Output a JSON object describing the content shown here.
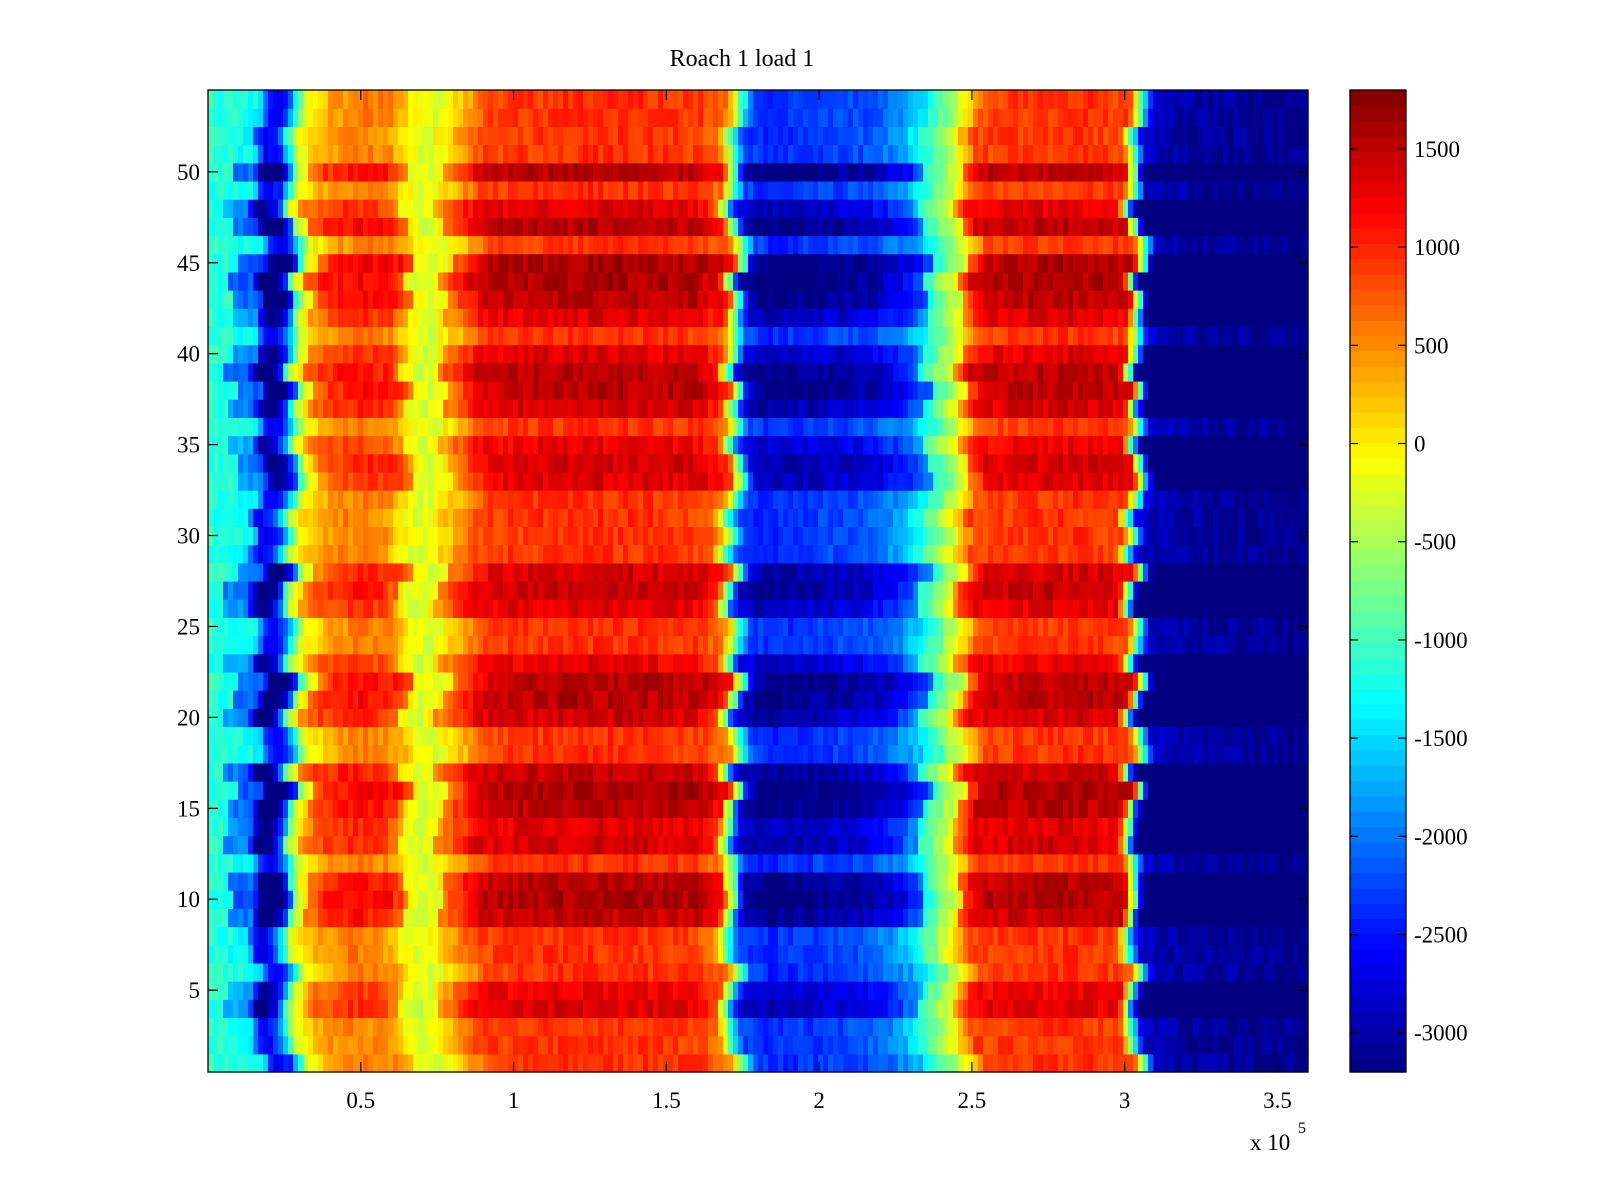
{
  "chart_data": {
    "type": "heatmap",
    "title": "Roach 1 load 1",
    "xlabel": "",
    "ylabel": "",
    "x_multiplier_label": {
      "base": "x 10",
      "exponent": "5"
    },
    "xlim": [
      0,
      360000
    ],
    "ylim": [
      0.5,
      54.5
    ],
    "x_ticks": [
      {
        "value": 50000,
        "label": "0.5"
      },
      {
        "value": 100000,
        "label": "1"
      },
      {
        "value": 150000,
        "label": "1.5"
      },
      {
        "value": 200000,
        "label": "2"
      },
      {
        "value": 250000,
        "label": "2.5"
      },
      {
        "value": 300000,
        "label": "3"
      },
      {
        "value": 350000,
        "label": "3.5"
      }
    ],
    "y_ticks": [
      {
        "value": 5,
        "label": "5"
      },
      {
        "value": 10,
        "label": "10"
      },
      {
        "value": 15,
        "label": "15"
      },
      {
        "value": 20,
        "label": "20"
      },
      {
        "value": 25,
        "label": "25"
      },
      {
        "value": 30,
        "label": "30"
      },
      {
        "value": 35,
        "label": "35"
      },
      {
        "value": 40,
        "label": "40"
      },
      {
        "value": 45,
        "label": "45"
      },
      {
        "value": 50,
        "label": "50"
      }
    ],
    "colorbar": {
      "colormap": "jet",
      "clim": [
        -3200,
        1800
      ],
      "ticks": [
        {
          "value": 1500,
          "label": "1500"
        },
        {
          "value": 1000,
          "label": "1000"
        },
        {
          "value": 500,
          "label": "500"
        },
        {
          "value": 0,
          "label": "0"
        },
        {
          "value": -500,
          "label": "-500"
        },
        {
          "value": -1000,
          "label": "-1000"
        },
        {
          "value": -1500,
          "label": "-1500"
        },
        {
          "value": -2000,
          "label": "-2000"
        },
        {
          "value": -2500,
          "label": "-2500"
        },
        {
          "value": -3000,
          "label": "-3000"
        }
      ]
    },
    "rows": 54,
    "column_profile": {
      "x": [
        0,
        15000,
        18000,
        20000,
        24000,
        30000,
        38000,
        50000,
        60000,
        66000,
        72000,
        82000,
        90000,
        100000,
        120000,
        140000,
        160000,
        168000,
        172000,
        176000,
        182000,
        200000,
        215000,
        228000,
        238000,
        245000,
        252000,
        265000,
        285000,
        300000,
        304000,
        307000,
        312000,
        325000,
        360000
      ],
      "value": [
        -1100,
        -1300,
        -2500,
        -2700,
        -2300,
        -200,
        350,
        600,
        450,
        -100,
        -300,
        300,
        850,
        900,
        950,
        950,
        900,
        600,
        -800,
        -2200,
        -2400,
        -2300,
        -2200,
        -1800,
        -900,
        -200,
        850,
        900,
        950,
        850,
        -1200,
        -2800,
        -2950,
        -3050,
        -3150
      ]
    },
    "row_modulation": {
      "rows": [
        50,
        48,
        47,
        45,
        44,
        43,
        42,
        40,
        39,
        38,
        37,
        35,
        34,
        33,
        28,
        27,
        26,
        23,
        22,
        21,
        20,
        17,
        16,
        15,
        14,
        13,
        11,
        10,
        9,
        5,
        4
      ],
      "strength": [
        0.9,
        0.6,
        0.9,
        1.0,
        1.0,
        0.9,
        0.6,
        0.6,
        0.9,
        0.9,
        0.7,
        0.5,
        0.7,
        0.6,
        0.7,
        0.8,
        0.6,
        0.5,
        0.9,
        0.9,
        0.7,
        0.8,
        1.0,
        0.9,
        0.6,
        0.7,
        0.9,
        1.0,
        0.8,
        0.5,
        0.6
      ]
    }
  }
}
